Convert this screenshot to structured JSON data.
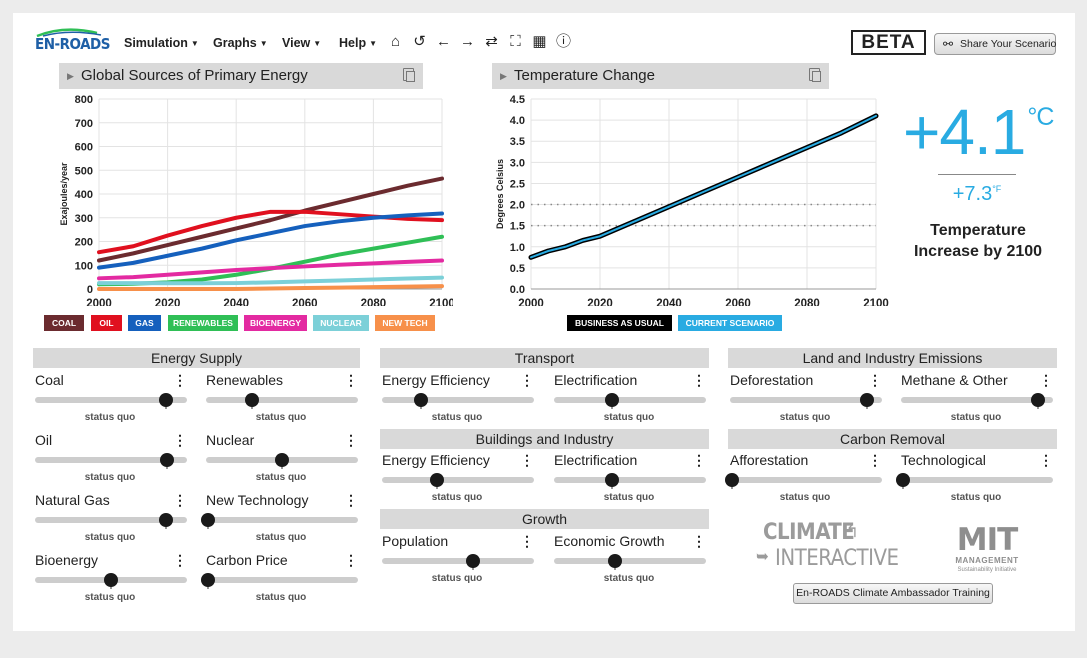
{
  "toolbar": {
    "logo_text": "EN-ROADS",
    "menus": [
      "Simulation",
      "Graphs",
      "View",
      "Help"
    ],
    "icons": [
      "home-icon",
      "undo-icon",
      "back-icon",
      "forward-icon",
      "reset-icon",
      "fullscreen-icon",
      "table-icon",
      "info-icon"
    ],
    "beta": "BETA",
    "share_label": "Share Your Scenario"
  },
  "energy_graph": {
    "title": "Global Sources of Primary Energy",
    "legend": [
      {
        "label": "COAL",
        "color": "#6b2b2f"
      },
      {
        "label": "OIL",
        "color": "#e0101f"
      },
      {
        "label": "GAS",
        "color": "#1560bd"
      },
      {
        "label": "RENEWABLES",
        "color": "#2fbf56"
      },
      {
        "label": "BIOENERGY",
        "color": "#e32aa1"
      },
      {
        "label": "NUCLEAR",
        "color": "#7cd0d8"
      },
      {
        "label": "NEW TECH",
        "color": "#f7904a"
      }
    ]
  },
  "temp_graph": {
    "title": "Temperature Change",
    "legend": [
      {
        "label": "BUSINESS AS USUAL",
        "color": "#000000"
      },
      {
        "label": "CURRENT SCENARIO",
        "color": "#29abe2"
      }
    ]
  },
  "temperature": {
    "celsius": "+4.1",
    "c_unit": "°C",
    "fahrenheit": "+7.3",
    "f_unit": "°F",
    "caption": "Temperature Increase by 2100"
  },
  "chart_data": [
    {
      "type": "line",
      "title": "Global Sources of Primary Energy",
      "xlabel": "",
      "ylabel": "Exajoules/year",
      "xlim": [
        2000,
        2100
      ],
      "ylim": [
        0,
        800
      ],
      "xticks": [
        2000,
        2020,
        2040,
        2060,
        2080,
        2100
      ],
      "yticks": [
        0,
        100,
        200,
        300,
        400,
        500,
        600,
        700,
        800
      ],
      "grid": true,
      "x": [
        2000,
        2010,
        2020,
        2030,
        2040,
        2050,
        2060,
        2070,
        2080,
        2090,
        2100
      ],
      "series": [
        {
          "name": "COAL",
          "color": "#6b2b2f",
          "values": [
            120,
            150,
            185,
            220,
            255,
            290,
            330,
            365,
            400,
            435,
            465
          ]
        },
        {
          "name": "OIL",
          "color": "#e0101f",
          "values": [
            155,
            180,
            225,
            265,
            300,
            325,
            325,
            315,
            305,
            295,
            290
          ]
        },
        {
          "name": "GAS",
          "color": "#1560bd",
          "values": [
            90,
            110,
            140,
            170,
            205,
            235,
            265,
            285,
            300,
            310,
            318
          ]
        },
        {
          "name": "RENEWABLES",
          "color": "#2fbf56",
          "values": [
            20,
            22,
            28,
            40,
            60,
            85,
            115,
            145,
            170,
            195,
            220
          ]
        },
        {
          "name": "BIOENERGY",
          "color": "#e32aa1",
          "values": [
            45,
            50,
            60,
            70,
            80,
            88,
            95,
            102,
            108,
            114,
            120
          ]
        },
        {
          "name": "NUCLEAR",
          "color": "#7cd0d8",
          "values": [
            25,
            25,
            24,
            24,
            25,
            28,
            32,
            36,
            40,
            44,
            48
          ]
        },
        {
          "name": "NEW TECH",
          "color": "#f7904a",
          "values": [
            0,
            0,
            0,
            0,
            0,
            2,
            4,
            6,
            8,
            10,
            12
          ]
        }
      ]
    },
    {
      "type": "line",
      "title": "Temperature Change",
      "xlabel": "",
      "ylabel": "Degrees Celsius",
      "xlim": [
        2000,
        2100
      ],
      "ylim": [
        0,
        4.5
      ],
      "xticks": [
        2000,
        2020,
        2040,
        2060,
        2080,
        2100
      ],
      "yticks": [
        0.0,
        0.5,
        1.0,
        1.5,
        2.0,
        2.5,
        3.0,
        3.5,
        4.0,
        4.5
      ],
      "reference_lines": [
        1.5,
        2.0
      ],
      "grid": true,
      "x": [
        2000,
        2005,
        2010,
        2015,
        2020,
        2030,
        2040,
        2050,
        2060,
        2070,
        2080,
        2090,
        2100
      ],
      "series": [
        {
          "name": "BUSINESS AS USUAL",
          "color": "#000000",
          "values": [
            0.75,
            0.9,
            1.0,
            1.15,
            1.25,
            1.6,
            1.95,
            2.3,
            2.65,
            3.0,
            3.35,
            3.7,
            4.1
          ]
        },
        {
          "name": "CURRENT SCENARIO",
          "color": "#29abe2",
          "values": [
            0.75,
            0.9,
            1.0,
            1.15,
            1.25,
            1.6,
            1.95,
            2.3,
            2.65,
            3.0,
            3.35,
            3.7,
            4.1
          ]
        }
      ]
    }
  ],
  "sections": {
    "energy_supply": "Energy Supply",
    "transport": "Transport",
    "buildings": "Buildings and Industry",
    "growth": "Growth",
    "land": "Land and Industry Emissions",
    "carbon_removal": "Carbon Removal"
  },
  "status_text": "status quo",
  "sliders": {
    "coal": {
      "label": "Coal",
      "value": 0.87
    },
    "renewables": {
      "label": "Renewables",
      "value": 0.3
    },
    "oil": {
      "label": "Oil",
      "value": 0.88
    },
    "nuclear": {
      "label": "Nuclear",
      "value": 0.5
    },
    "natural_gas": {
      "label": "Natural Gas",
      "value": 0.87
    },
    "new_technology": {
      "label": "New Technology",
      "value": 0.0
    },
    "bioenergy": {
      "label": "Bioenergy",
      "value": 0.5
    },
    "carbon_price": {
      "label": "Carbon Price",
      "value": 0.0
    },
    "transport_efficiency": {
      "label": "Energy Efficiency",
      "value": 0.25
    },
    "transport_electrification": {
      "label": "Electrification",
      "value": 0.38
    },
    "buildings_efficiency": {
      "label": "Energy Efficiency",
      "value": 0.36
    },
    "buildings_electrification": {
      "label": "Electrification",
      "value": 0.38
    },
    "population": {
      "label": "Population",
      "value": 0.6
    },
    "economic_growth": {
      "label": "Economic Growth",
      "value": 0.4
    },
    "deforestation": {
      "label": "Deforestation",
      "value": 0.91
    },
    "methane_other": {
      "label": "Methane & Other",
      "value": 0.91
    },
    "afforestation": {
      "label": "Afforestation",
      "value": 0.0
    },
    "technological": {
      "label": "Technological",
      "value": 0.0
    }
  },
  "logos": {
    "climate_interactive_1": "CLIMATE",
    "climate_interactive_2": "INTERACTIVE",
    "mit_1": "MIT",
    "mit_2": "MANAGEMENT",
    "mit_3": "Sustainability Initiative"
  },
  "training_button": "En-ROADS Climate Ambassador Training"
}
